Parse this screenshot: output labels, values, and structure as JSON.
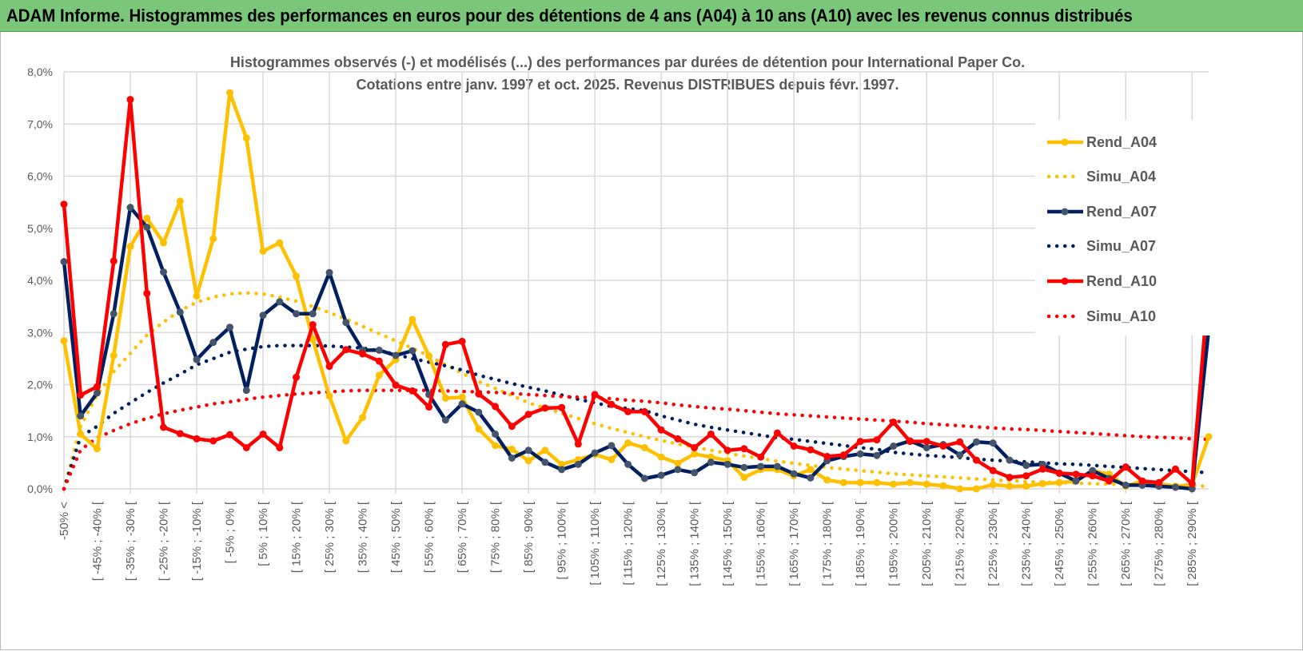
{
  "header": {
    "title": "ADAM Informe. Histogrammes des performances en euros pour des détentions de 4 ans (A04) à 10 ans (A10) avec les revenus connus distribués"
  },
  "chart_data": {
    "type": "line",
    "title": "Histogrammes observés (-) et modélisés (...) des performances par durées de détention pour International Paper Co.",
    "subtitle": "Cotations entre janv. 1997 et oct. 2025. Revenus DISTRIBUES depuis févr. 1997.",
    "xlabel": "",
    "ylabel": "",
    "ylim": [
      0,
      8
    ],
    "y_ticks": [
      "0,0%",
      "1,0%",
      "2,0%",
      "3,0%",
      "4,0%",
      "5,0%",
      "6,0%",
      "7,0%",
      "8,0%"
    ],
    "y_unit": "%",
    "grid": true,
    "legend_position": "right",
    "categories": [
      "-50% <",
      "",
      "[ -45% ; -40% [",
      "",
      "[ -35% ; -30% [",
      "",
      "[ -25% ; -20% [",
      "",
      "[ -15% ; -10% [",
      "",
      "[ -5% ; 0% [",
      "",
      "[ 5% ; 10% [",
      "",
      "[ 15% ; 20% [",
      "",
      "[ 25% ; 30% [",
      "",
      "[ 35% ; 40% [",
      "",
      "[ 45% ; 50% [",
      "",
      "[ 55% ; 60% [",
      "",
      "[ 65% ; 70% [",
      "",
      "[ 75% ; 80% [",
      "",
      "[ 85% ; 90% [",
      "",
      "[ 95% ; 100% [",
      "",
      "[ 105% ; 110% [",
      "",
      "[ 115% ; 120% [",
      "",
      "[ 125% ; 130% [",
      "",
      "[ 135% ; 140% [",
      "",
      "[ 145% ; 150% [",
      "",
      "[ 155% ; 160% [",
      "",
      "[ 165% ; 170% [",
      "",
      "[ 175% ; 180% [",
      "",
      "[ 185% ; 190% [",
      "",
      "[ 195% ; 200% [",
      "",
      "[ 205% ; 210% [",
      "",
      "[ 215% ; 220% [",
      "",
      "[ 225% ; 230% [",
      "",
      "[ 235% ; 240% [",
      "",
      "[ 245% ; 250% [",
      "",
      "[ 255% ; 260% [",
      "",
      "[ 265% ; 270% [",
      "",
      "[ 275% ; 280% [",
      "",
      "[ 285% ; 290% [",
      ""
    ],
    "series": [
      {
        "name": "Rend_A04",
        "style": "solid",
        "color": "#ffc000",
        "values": [
          2.84,
          1.05,
          0.77,
          2.56,
          4.65,
          5.19,
          4.72,
          5.52,
          3.7,
          4.8,
          7.6,
          6.73,
          4.56,
          4.72,
          4.08,
          2.87,
          1.78,
          0.92,
          1.37,
          2.18,
          2.48,
          3.25,
          2.55,
          1.74,
          1.76,
          1.15,
          0.83,
          0.76,
          0.54,
          0.74,
          0.47,
          0.56,
          0.66,
          0.56,
          0.88,
          0.79,
          0.61,
          0.49,
          0.67,
          0.61,
          0.54,
          0.22,
          0.37,
          0.37,
          0.25,
          0.37,
          0.17,
          0.12,
          0.12,
          0.12,
          0.09,
          0.12,
          0.09,
          0.06,
          0.0,
          0.0,
          0.08,
          0.05,
          0.05,
          0.1,
          0.12,
          0.15,
          0.35,
          0.28,
          0.05,
          0.15,
          0.1,
          0.05,
          0.08,
          1.0
        ]
      },
      {
        "name": "Simu_A04",
        "style": "dotted",
        "color": "#ffc000",
        "values": [
          0.0,
          1.2,
          1.8,
          2.25,
          2.6,
          2.95,
          3.2,
          3.42,
          3.58,
          3.68,
          3.74,
          3.76,
          3.74,
          3.68,
          3.6,
          3.5,
          3.38,
          3.26,
          3.12,
          2.98,
          2.84,
          2.7,
          2.55,
          2.38,
          2.22,
          2.06,
          1.93,
          1.79,
          1.65,
          1.55,
          1.45,
          1.35,
          1.25,
          1.16,
          1.08,
          1.0,
          0.93,
          0.86,
          0.8,
          0.74,
          0.68,
          0.63,
          0.58,
          0.53,
          0.49,
          0.45,
          0.41,
          0.38,
          0.35,
          0.32,
          0.29,
          0.27,
          0.25,
          0.23,
          0.21,
          0.19,
          0.17,
          0.16,
          0.14,
          0.13,
          0.12,
          0.11,
          0.1,
          0.09,
          0.08,
          0.07,
          0.07,
          0.06,
          0.06,
          0.05
        ]
      },
      {
        "name": "Rend_A07",
        "style": "solid",
        "color": "#002060",
        "values": [
          4.36,
          1.4,
          1.84,
          3.36,
          5.4,
          5.02,
          4.16,
          3.39,
          2.48,
          2.81,
          3.1,
          1.89,
          3.33,
          3.59,
          3.36,
          3.36,
          4.15,
          3.19,
          2.66,
          2.66,
          2.56,
          2.65,
          1.81,
          1.32,
          1.63,
          1.47,
          1.05,
          0.59,
          0.74,
          0.51,
          0.37,
          0.47,
          0.69,
          0.83,
          0.47,
          0.2,
          0.26,
          0.37,
          0.31,
          0.51,
          0.47,
          0.41,
          0.43,
          0.43,
          0.29,
          0.21,
          0.54,
          0.62,
          0.67,
          0.64,
          0.82,
          0.92,
          0.79,
          0.85,
          0.65,
          0.9,
          0.88,
          0.55,
          0.45,
          0.47,
          0.3,
          0.15,
          0.35,
          0.2,
          0.07,
          0.07,
          0.05,
          0.03,
          0.0,
          3.05
        ]
      },
      {
        "name": "Simu_A07",
        "style": "dotted",
        "color": "#002060",
        "values": [
          0.0,
          1.0,
          1.2,
          1.45,
          1.65,
          1.85,
          2.03,
          2.2,
          2.38,
          2.5,
          2.62,
          2.68,
          2.73,
          2.75,
          2.75,
          2.75,
          2.74,
          2.72,
          2.7,
          2.65,
          2.58,
          2.5,
          2.43,
          2.36,
          2.28,
          2.18,
          2.1,
          2.02,
          1.95,
          1.88,
          1.8,
          1.72,
          1.65,
          1.58,
          1.54,
          1.5,
          1.4,
          1.32,
          1.24,
          1.18,
          1.13,
          1.08,
          1.03,
          0.98,
          0.95,
          0.91,
          0.87,
          0.83,
          0.79,
          0.76,
          0.7,
          0.67,
          0.64,
          0.62,
          0.6,
          0.57,
          0.55,
          0.53,
          0.52,
          0.5,
          0.48,
          0.47,
          0.45,
          0.43,
          0.41,
          0.39,
          0.37,
          0.35,
          0.33,
          0.31
        ]
      },
      {
        "name": "Rend_A10",
        "style": "solid",
        "color": "#ff0000",
        "values": [
          5.46,
          1.8,
          1.96,
          4.37,
          7.47,
          3.75,
          1.18,
          1.06,
          0.96,
          0.92,
          1.04,
          0.79,
          1.05,
          0.79,
          2.14,
          3.15,
          2.35,
          2.67,
          2.59,
          2.45,
          1.99,
          1.88,
          1.57,
          2.77,
          2.83,
          1.82,
          1.58,
          1.2,
          1.43,
          1.55,
          1.56,
          0.86,
          1.81,
          1.62,
          1.48,
          1.48,
          1.13,
          0.96,
          0.79,
          1.05,
          0.74,
          0.77,
          0.61,
          1.07,
          0.82,
          0.75,
          0.62,
          0.65,
          0.91,
          0.94,
          1.28,
          0.91,
          0.91,
          0.82,
          0.9,
          0.55,
          0.35,
          0.22,
          0.25,
          0.38,
          0.3,
          0.28,
          0.25,
          0.15,
          0.42,
          0.15,
          0.12,
          0.38,
          0.1,
          3.93
        ]
      },
      {
        "name": "Simu_A10",
        "style": "dotted",
        "color": "#ff0000",
        "values": [
          0.0,
          0.75,
          0.98,
          1.12,
          1.25,
          1.35,
          1.44,
          1.51,
          1.57,
          1.63,
          1.67,
          1.72,
          1.76,
          1.79,
          1.82,
          1.84,
          1.86,
          1.88,
          1.89,
          1.89,
          1.89,
          1.89,
          1.89,
          1.88,
          1.87,
          1.86,
          1.85,
          1.83,
          1.81,
          1.79,
          1.77,
          1.76,
          1.75,
          1.73,
          1.7,
          1.68,
          1.65,
          1.61,
          1.58,
          1.55,
          1.53,
          1.5,
          1.47,
          1.44,
          1.42,
          1.4,
          1.38,
          1.36,
          1.34,
          1.32,
          1.3,
          1.28,
          1.25,
          1.23,
          1.21,
          1.19,
          1.17,
          1.15,
          1.14,
          1.12,
          1.1,
          1.08,
          1.06,
          1.04,
          1.02,
          1.0,
          0.99,
          0.98,
          0.96,
          0.95
        ]
      }
    ]
  }
}
